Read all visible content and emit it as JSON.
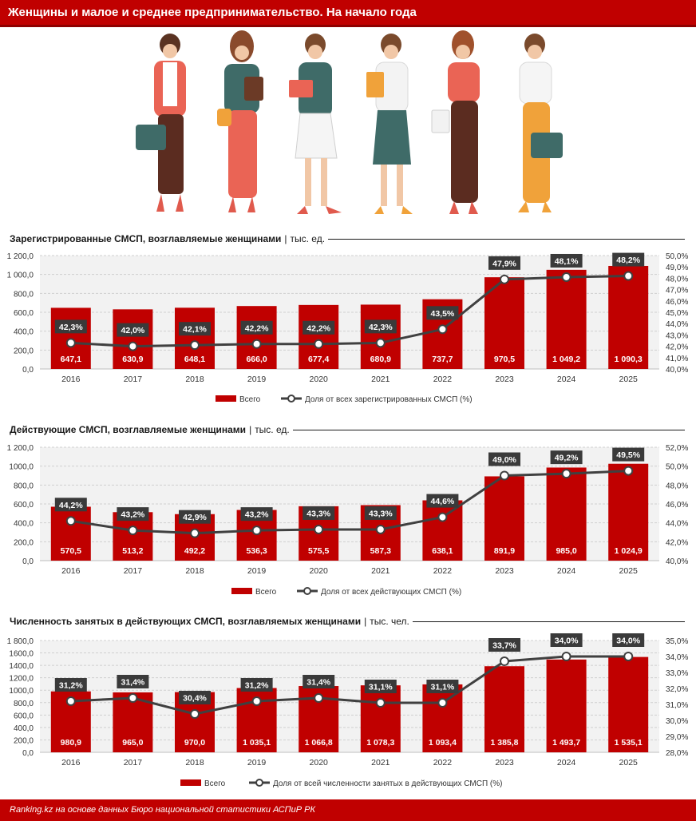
{
  "header": {
    "title": "Женщины и малое и среднее предпринимательство. На начало года"
  },
  "colors": {
    "brand": "#c00000",
    "bar": "#c00000",
    "line": "#404040",
    "label_bg": "#3a3a3a"
  },
  "footer": {
    "source": "Ranking.kz на основе данных Бюро национальной статистики АСПиР РК"
  },
  "sections": [
    {
      "title": "Зарегистрированные СМСП, возглавляемые женщинами",
      "sep": "|",
      "unit": "тыс. ед."
    },
    {
      "title": "Действующие СМСП, возглавляемые женщинами",
      "sep": "|",
      "unit": "тыс. ед."
    },
    {
      "title": "Численность занятых в действующих СМСП, возглавляемых женщинами",
      "sep": "|",
      "unit": "тыс. чел."
    }
  ],
  "chart_data": [
    {
      "type": "bar",
      "categories": [
        "2016",
        "2017",
        "2018",
        "2019",
        "2020",
        "2021",
        "2022",
        "2023",
        "2024",
        "2025"
      ],
      "series": [
        {
          "name": "Всего",
          "type": "bar",
          "axis": "left",
          "values": [
            647.1,
            630.9,
            648.1,
            666.0,
            677.4,
            680.9,
            737.7,
            970.5,
            1049.2,
            1090.3
          ],
          "labels": [
            "647,1",
            "630,9",
            "648,1",
            "666,0",
            "677,4",
            "680,9",
            "737,7",
            "970,5",
            "1 049,2",
            "1 090,3"
          ]
        },
        {
          "name": "Доля от всех зарегистрированных СМСП (%)",
          "type": "line",
          "axis": "right",
          "values": [
            42.3,
            42.0,
            42.1,
            42.2,
            42.2,
            42.3,
            43.5,
            47.9,
            48.1,
            48.2
          ],
          "labels": [
            "42,3%",
            "42,0%",
            "42,1%",
            "42,2%",
            "42,2%",
            "42,3%",
            "43,5%",
            "47,9%",
            "48,1%",
            "48,2%"
          ]
        }
      ],
      "left_axis": {
        "ylim": [
          0,
          1200
        ],
        "ticks": [
          "0,0",
          "200,0",
          "400,0",
          "600,0",
          "800,0",
          "1 000,0",
          "1 200,0"
        ]
      },
      "right_axis": {
        "ylim": [
          40,
          50
        ],
        "ticks": [
          "40,0%",
          "41,0%",
          "42,0%",
          "43,0%",
          "44,0%",
          "45,0%",
          "46,0%",
          "47,0%",
          "48,0%",
          "49,0%",
          "50,0%"
        ]
      },
      "grid": true,
      "legend_position": "bottom"
    },
    {
      "type": "bar",
      "categories": [
        "2016",
        "2017",
        "2018",
        "2019",
        "2020",
        "2021",
        "2022",
        "2023",
        "2024",
        "2025"
      ],
      "series": [
        {
          "name": "Всего",
          "type": "bar",
          "axis": "left",
          "values": [
            570.5,
            513.2,
            492.2,
            536.3,
            575.5,
            587.3,
            638.1,
            891.9,
            985.0,
            1024.9
          ],
          "labels": [
            "570,5",
            "513,2",
            "492,2",
            "536,3",
            "575,5",
            "587,3",
            "638,1",
            "891,9",
            "985,0",
            "1 024,9"
          ]
        },
        {
          "name": "Доля от всех действующих СМСП (%)",
          "type": "line",
          "axis": "right",
          "values": [
            44.2,
            43.2,
            42.9,
            43.2,
            43.3,
            43.3,
            44.6,
            49.0,
            49.2,
            49.5
          ],
          "labels": [
            "44,2%",
            "43,2%",
            "42,9%",
            "43,2%",
            "43,3%",
            "43,3%",
            "44,6%",
            "49,0%",
            "49,2%",
            "49,5%"
          ]
        }
      ],
      "left_axis": {
        "ylim": [
          0,
          1200
        ],
        "ticks": [
          "0,0",
          "200,0",
          "400,0",
          "600,0",
          "800,0",
          "1000,0",
          "1 200,0"
        ]
      },
      "right_axis": {
        "ylim": [
          40,
          52
        ],
        "ticks": [
          "40,0%",
          "42,0%",
          "44,0%",
          "46,0%",
          "48,0%",
          "50,0%",
          "52,0%"
        ]
      },
      "grid": true,
      "legend_position": "bottom"
    },
    {
      "type": "bar",
      "categories": [
        "2016",
        "2017",
        "2018",
        "2019",
        "2020",
        "2021",
        "2022",
        "2023",
        "2024",
        "2025"
      ],
      "series": [
        {
          "name": "Всего",
          "type": "bar",
          "axis": "left",
          "values": [
            980.9,
            965.0,
            970.0,
            1035.1,
            1066.8,
            1078.3,
            1093.4,
            1385.8,
            1493.7,
            1535.1
          ],
          "labels": [
            "980,9",
            "965,0",
            "970,0",
            "1 035,1",
            "1 066,8",
            "1 078,3",
            "1 093,4",
            "1 385,8",
            "1 493,7",
            "1 535,1"
          ]
        },
        {
          "name": "Доля от всей численности занятых в действующих СМСП (%)",
          "type": "line",
          "axis": "right",
          "values": [
            31.2,
            31.4,
            30.4,
            31.2,
            31.4,
            31.1,
            31.1,
            33.7,
            34.0,
            34.0
          ],
          "labels": [
            "31,2%",
            "31,4%",
            "30,4%",
            "31,2%",
            "31,4%",
            "31,1%",
            "31,1%",
            "33,7%",
            "34,0%",
            "34,0%"
          ]
        }
      ],
      "left_axis": {
        "ylim": [
          0,
          1800
        ],
        "ticks": [
          "0,0",
          "200,0",
          "400,0",
          "600,0",
          "800,0",
          "1000,0",
          "1200,0",
          "1400,0",
          "1600,0",
          "1 800,0"
        ]
      },
      "right_axis": {
        "ylim": [
          28,
          35
        ],
        "ticks": [
          "28,0%",
          "29,0%",
          "30,0%",
          "31,0%",
          "32,0%",
          "33,0%",
          "34,0%",
          "35,0%"
        ]
      },
      "grid": true,
      "legend_position": "bottom"
    }
  ]
}
